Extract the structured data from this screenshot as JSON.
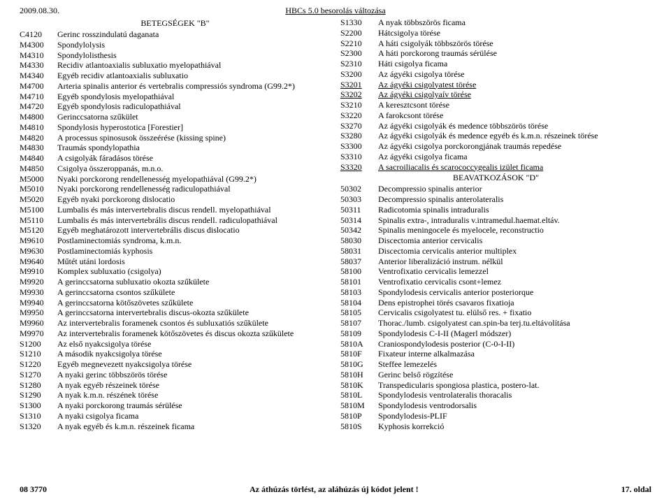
{
  "top": {
    "date": "2009.08.30.",
    "title": "HBCs 5.0 besorolás változása"
  },
  "left": {
    "section_title": "BETEGSÉGEK \"B\"",
    "rows": [
      {
        "code": "C4120",
        "label": "Gerinc rosszindulatú daganata"
      },
      {
        "code": "M4300",
        "label": "Spondylolysis"
      },
      {
        "code": "M4310",
        "label": "Spondylolisthesis"
      },
      {
        "code": "M4330",
        "label": "Recidiv atlantoaxialis subluxatio myelopathiával"
      },
      {
        "code": "M4340",
        "label": "Egyéb recidiv atlantoaxialis subluxatio"
      },
      {
        "code": "M4700",
        "label": "Arteria spinalis anterior és vertebralis compressiós syndroma (G99.2*)"
      },
      {
        "code": "M4710",
        "label": "Egyéb spondylosis myelopathiával"
      },
      {
        "code": "M4720",
        "label": "Egyéb spondylosis radiculopathiával"
      },
      {
        "code": "M4800",
        "label": "Gerinccsatorna szűkület"
      },
      {
        "code": "M4810",
        "label": "Spondylosis hyperostotica [Forestier]"
      },
      {
        "code": "M4820",
        "label": "A processus spinosusok összeérése (kissing spine)"
      },
      {
        "code": "M4830",
        "label": "Traumás spondylopathia"
      },
      {
        "code": "M4840",
        "label": "A csigolyák fáradásos törése"
      },
      {
        "code": "M4850",
        "label": "Csigolya összeroppanás, m.n.o."
      },
      {
        "code": "M5000",
        "label": "Nyaki porckorong rendellenesség myelopathiával (G99.2*)"
      },
      {
        "code": "M5010",
        "label": "Nyaki porckorong rendellenesség radiculopathiával"
      },
      {
        "code": "M5020",
        "label": "Egyéb nyaki porckorong dislocatio"
      },
      {
        "code": "M5100",
        "label": "Lumbalis és más intervertebralis discus rendell. myelopathiával"
      },
      {
        "code": "M5110",
        "label": "Lumbalis és más intervertebrális discus rendell. radiculopathiával"
      },
      {
        "code": "M5120",
        "label": "Egyéb meghatározott intervertebrális discus dislocatio"
      },
      {
        "code": "M9610",
        "label": "Postlaminectomiás syndroma, k.m.n."
      },
      {
        "code": "M9630",
        "label": "Postlaminectomiás kyphosis"
      },
      {
        "code": "M9640",
        "label": "Műtét utáni lordosis"
      },
      {
        "code": "M9910",
        "label": "Komplex subluxatio (csigolya)"
      },
      {
        "code": "M9920",
        "label": "A gerinccsatorna subluxatio okozta szűkülete"
      },
      {
        "code": "M9930",
        "label": "A gerinccsatorna csontos szűkülete"
      },
      {
        "code": "M9940",
        "label": "A gerinccsatorna kötőszövetes szűkülete"
      },
      {
        "code": "M9950",
        "label": "A gerinccsatorna intervertebralis discus-okozta szűkülete"
      },
      {
        "code": "M9960",
        "label": "Az intervertebralis foramenek csontos és subluxatiós szűkülete"
      },
      {
        "code": "M9970",
        "label": "Az intervertebralis foramenek kötőszövetes és discus okozta szűkülete"
      },
      {
        "code": "S1200",
        "label": "Az első nyakcsigolya törése"
      },
      {
        "code": "S1210",
        "label": "A második nyakcsigolya törése"
      },
      {
        "code": "S1220",
        "label": "Egyéb megnevezett nyakcsigolya törése"
      },
      {
        "code": "S1270",
        "label": "A nyaki gerinc többszörös törése"
      },
      {
        "code": "S1280",
        "label": "A nyak egyéb részeinek törése"
      },
      {
        "code": "S1290",
        "label": "A nyak k.m.n. részének törése"
      },
      {
        "code": "S1300",
        "label": "A nyaki porckorong traumás sérülése"
      },
      {
        "code": "S1310",
        "label": "A nyaki csigolya ficama"
      },
      {
        "code": "S1320",
        "label": "A nyak egyéb és k.m.n. részeinek ficama"
      }
    ]
  },
  "right_a": {
    "rows": [
      {
        "code": "S1330",
        "label": "A nyak többszörös ficama"
      },
      {
        "code": "S2200",
        "label": "Hátcsigolya törése"
      },
      {
        "code": "S2210",
        "label": "A háti csigolyák többszörös törése"
      },
      {
        "code": "S2300",
        "label": "A háti porckorong traumás sérülése"
      },
      {
        "code": "S2310",
        "label": "Háti csigolya ficama"
      },
      {
        "code": "S3200",
        "label": "Az ágyéki csigolya törése"
      },
      {
        "code": "S3201",
        "label": "Az ágyéki csigolyatest törése",
        "u": true
      },
      {
        "code": "S3202",
        "label": "Az ágyéki csigolyaív törése",
        "u": true
      },
      {
        "code": "S3210",
        "label": "A keresztcsont törése"
      },
      {
        "code": "S3220",
        "label": "A farokcsont törése"
      },
      {
        "code": "S3270",
        "label": "Az ágyéki csigolyák és medence többszörös törése"
      },
      {
        "code": "S3280",
        "label": "Az ágyéki csigolyák és medence egyéb és k.m.n. részeinek törése"
      },
      {
        "code": "S3300",
        "label": "Az ágyéki csigolya porckorongjának traumás repedése"
      },
      {
        "code": "S3310",
        "label": "Az ágyéki csigolya ficama"
      },
      {
        "code": "S3320",
        "label": "A sacroiliacalis és scarococcygealis izület ficama",
        "u": true
      }
    ]
  },
  "right_b": {
    "section_title": "BEAVATKOZÁSOK \"D\"",
    "rows": [
      {
        "code": "50302",
        "label": "Decompressio spinalis anterior"
      },
      {
        "code": "50303",
        "label": "Decompressio spinalis anterolateralis"
      },
      {
        "code": "50311",
        "label": "Radicotomia spinalis intraduralis"
      },
      {
        "code": "50314",
        "label": "Spinalis extra-, intraduralis v.intramedul.haemat.eltáv."
      },
      {
        "code": "50342",
        "label": "Spinalis meningocele és myelocele, reconstructio"
      },
      {
        "code": "58030",
        "label": "Discectomia anterior cervicalis"
      },
      {
        "code": "58031",
        "label": "Discectomia cervicalis anterior multiplex"
      },
      {
        "code": "58037",
        "label": "Anterior liberalizáció instrum. nélkül"
      },
      {
        "code": "58100",
        "label": "Ventrofixatio cervicalis lemezzel"
      },
      {
        "code": "58101",
        "label": "Ventrofixatio cervicalis csont+lemez"
      },
      {
        "code": "58103",
        "label": "Spondylodesis cervicalis anterior posteriorque"
      },
      {
        "code": "58104",
        "label": "Dens epistrophei törés csavaros fixatioja"
      },
      {
        "code": "58105",
        "label": "Cervicalis csigolyatest tu. elülső res. + fixatio"
      },
      {
        "code": "58107",
        "label": "Thorac./lumb. csigolyatest can.spin-ba terj.tu.eltávolítása"
      },
      {
        "code": "58109",
        "label": "Spondylodesis C-I-II (Magerl módszer)"
      },
      {
        "code": "5810A",
        "label": "Craniospondylodesis posterior (C-0-I-II)"
      },
      {
        "code": "5810F",
        "label": "Fixateur interne alkalmazása"
      },
      {
        "code": "5810G",
        "label": "Steffee lemezelés"
      },
      {
        "code": "5810H",
        "label": "Gerinc belső rögzítése"
      },
      {
        "code": "5810K",
        "label": "Transpedicularis spongiosa plastica, postero-lat."
      },
      {
        "code": "5810L",
        "label": "Spondylodesis ventrolateralis thoracalis"
      },
      {
        "code": "5810M",
        "label": "Spondylodesis ventrodorsalis"
      },
      {
        "code": "5810P",
        "label": "Spondylodesis-PLIF"
      },
      {
        "code": "5810S",
        "label": "Kyphosis korrekció"
      }
    ]
  },
  "footer": {
    "left": "08 3770",
    "mid": "Az áthúzás törlést, az aláhúzás új kódot jelent !",
    "right": "17. oldal"
  }
}
